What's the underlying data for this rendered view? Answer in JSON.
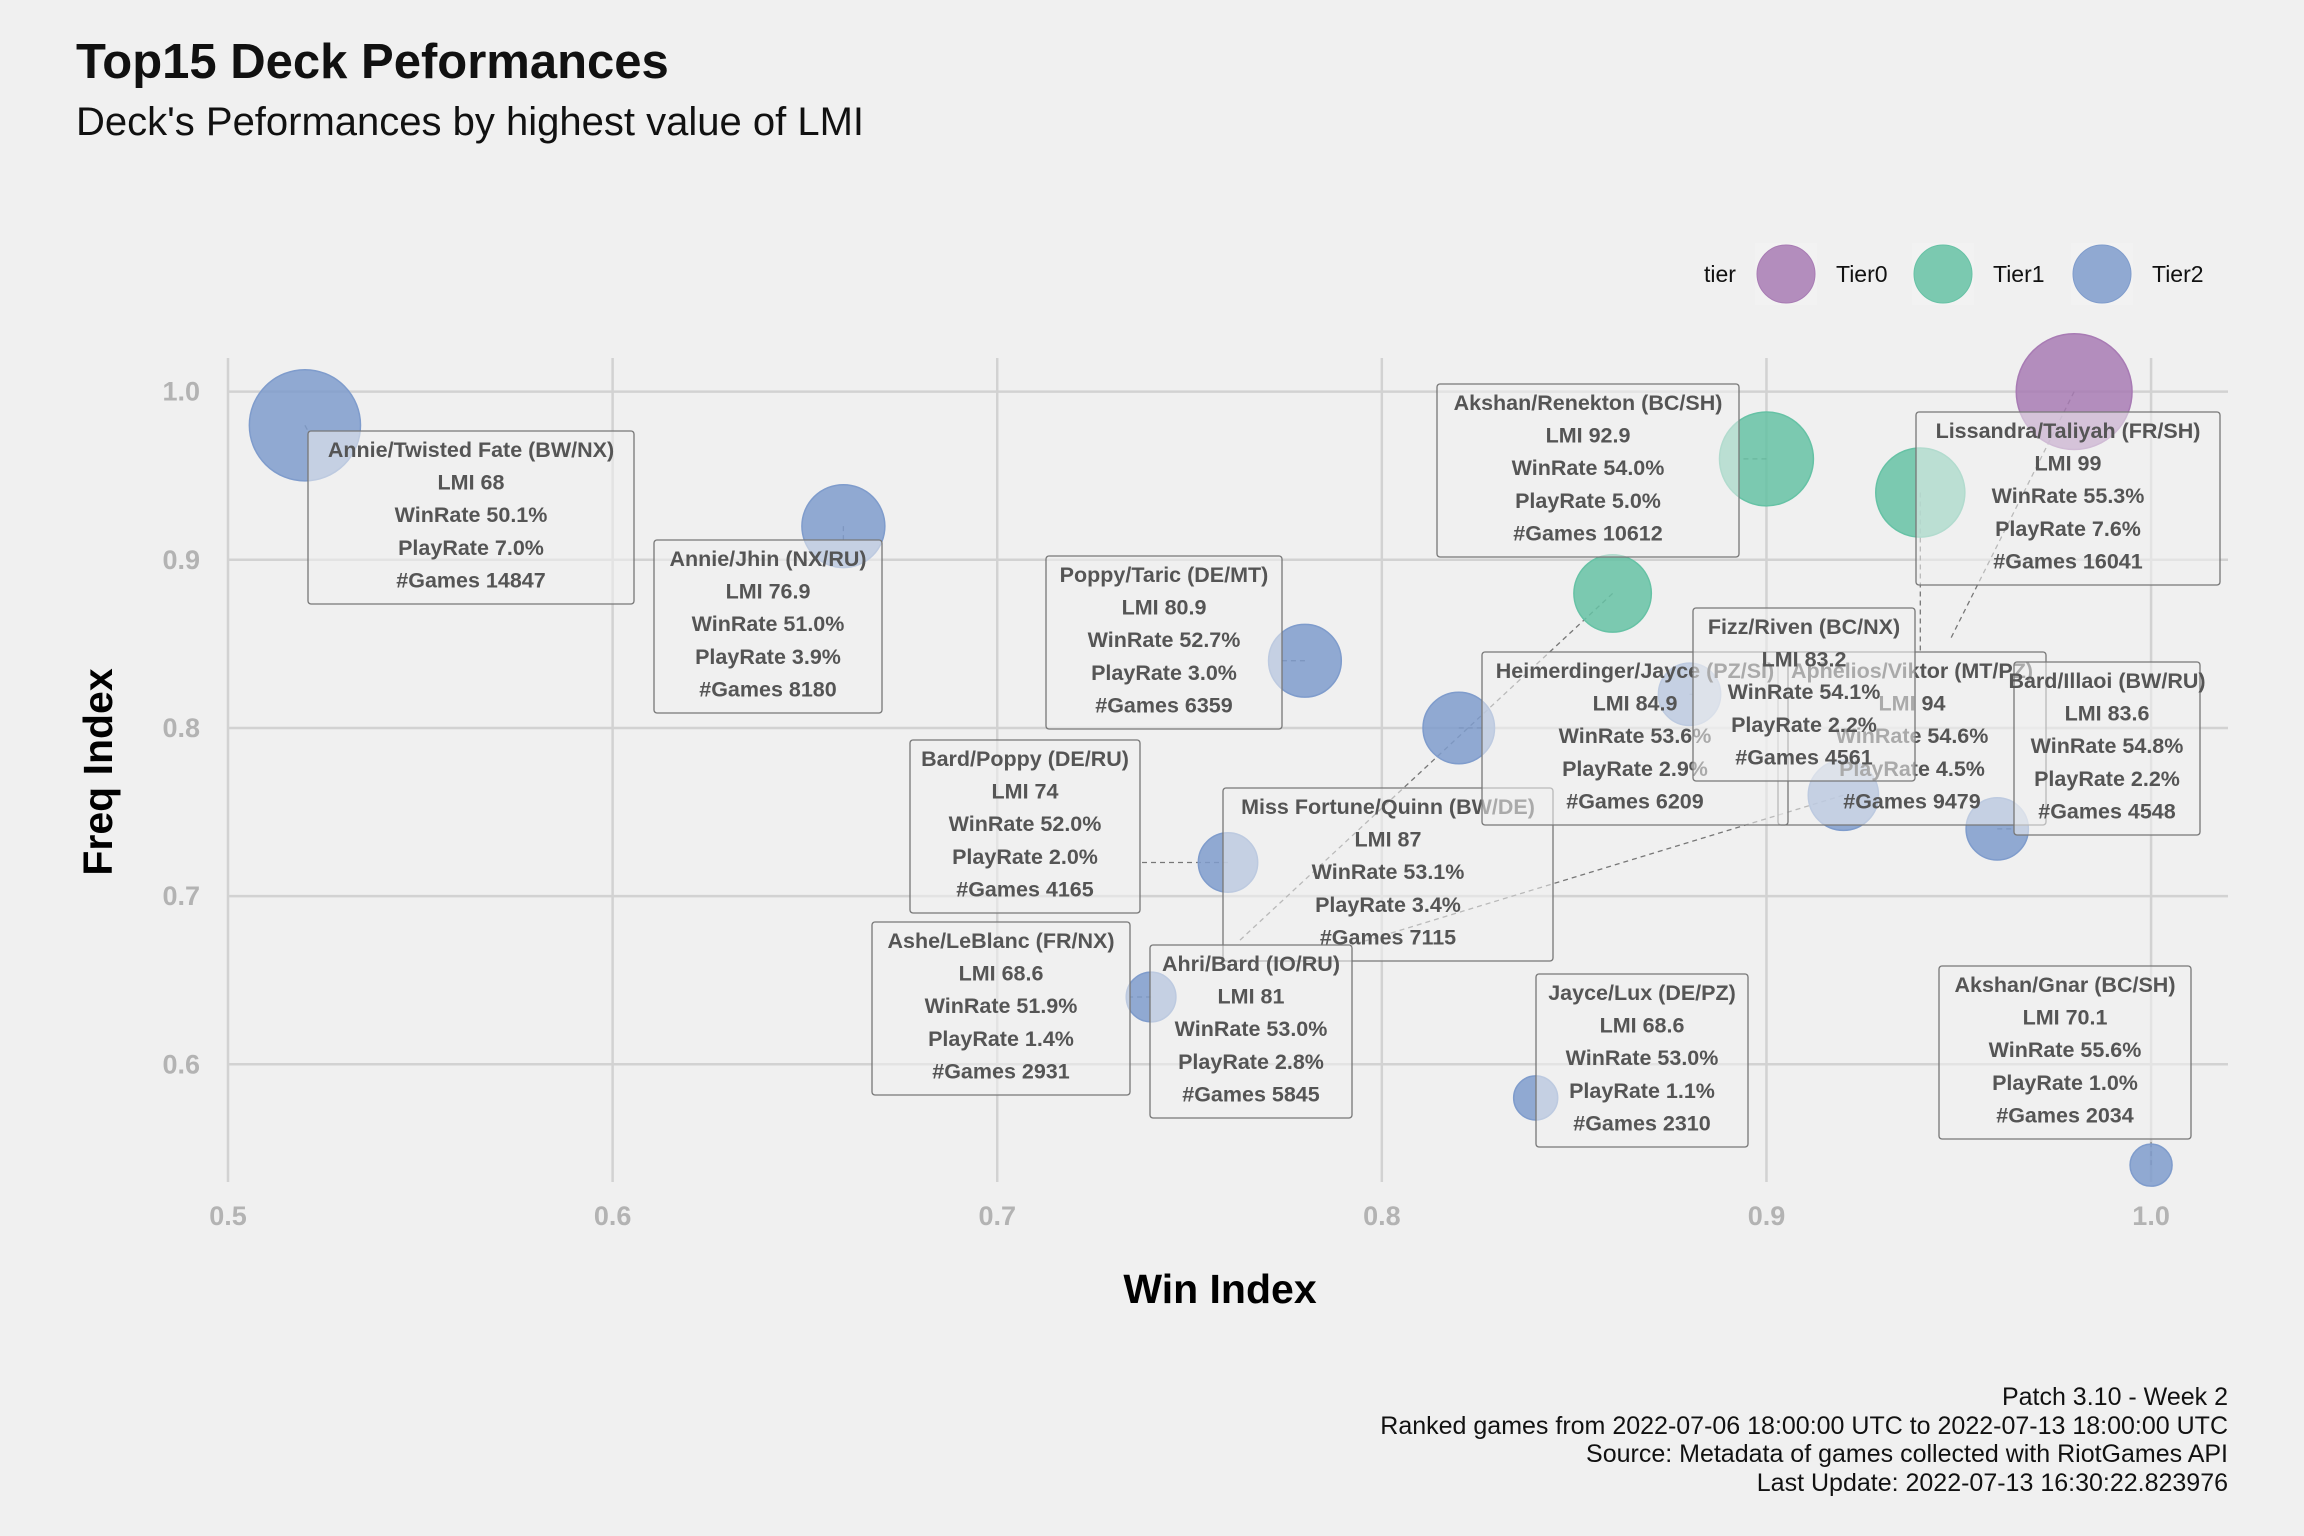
{
  "title": "Top15 Deck Peformances",
  "subtitle": "Deck's Peformances by highest value of LMI",
  "caption": [
    "Patch 3.10 - Week 2",
    "Ranked games from 2022-07-06 18:00:00 UTC to 2022-07-13 18:00:00 UTC",
    "Source: Metadata of games collected with RiotGames API",
    "Last Update: 2022-07-13 16:30:22.823976"
  ],
  "colors": {
    "Tier0": "#a87bb4",
    "Tier1": "#66c2a5",
    "Tier2": "#7f9ccc"
  },
  "chart_data": {
    "type": "scatter",
    "xlabel": "Win Index",
    "ylabel": "Freq Index",
    "xlim": [
      0.5,
      1.02
    ],
    "ylim": [
      0.53,
      1.02
    ],
    "xticks": [
      "0.5",
      "0.6",
      "0.7",
      "0.8",
      "0.9",
      "1.0"
    ],
    "yticks": [
      "0.6",
      "0.7",
      "0.8",
      "0.9",
      "1.0"
    ],
    "grid": true,
    "legend": {
      "title": "tier",
      "position": "top-right",
      "entries": [
        "Tier0",
        "Tier1",
        "Tier2"
      ]
    },
    "size_variable": "PlayRate",
    "points": [
      {
        "deck": "Lissandra/Taliyah (FR/SH)",
        "tier": "Tier0",
        "x": 0.98,
        "y": 1.0,
        "lmi": "99",
        "winrate": "55.3%",
        "playrate": "7.6%",
        "games": "16041"
      },
      {
        "deck": "Akshan/Renekton (BC/SH)",
        "tier": "Tier1",
        "x": 0.9,
        "y": 0.96,
        "lmi": "92.9",
        "winrate": "54.0%",
        "playrate": "5.0%",
        "games": "10612"
      },
      {
        "deck": "Aphelios/Viktor (MT/PZ)",
        "tier": "Tier1",
        "x": 0.94,
        "y": 0.94,
        "lmi": "94",
        "winrate": "54.6%",
        "playrate": "4.5%",
        "games": "9479"
      },
      {
        "deck": "Miss Fortune/Quinn (BW/DE)",
        "tier": "Tier1",
        "x": 0.86,
        "y": 0.88,
        "lmi": "87",
        "winrate": "53.1%",
        "playrate": "3.4%",
        "games": "7115"
      },
      {
        "deck": "Annie/Twisted Fate (BW/NX)",
        "tier": "Tier2",
        "x": 0.52,
        "y": 0.98,
        "lmi": "68",
        "winrate": "50.1%",
        "playrate": "7.0%",
        "games": "14847"
      },
      {
        "deck": "Annie/Jhin (NX/RU)",
        "tier": "Tier2",
        "x": 0.66,
        "y": 0.92,
        "lmi": "76.9",
        "winrate": "51.0%",
        "playrate": "3.9%",
        "games": "8180"
      },
      {
        "deck": "Poppy/Taric (DE/MT)",
        "tier": "Tier2",
        "x": 0.78,
        "y": 0.84,
        "lmi": "80.9",
        "winrate": "52.7%",
        "playrate": "3.0%",
        "games": "6359"
      },
      {
        "deck": "Heimerdinger/Jayce (PZ/SI)",
        "tier": "Tier2",
        "x": 0.82,
        "y": 0.8,
        "lmi": "84.9",
        "winrate": "53.6%",
        "playrate": "2.9%",
        "games": "6209"
      },
      {
        "deck": "Fizz/Riven (BC/NX)",
        "tier": "Tier2",
        "x": 0.88,
        "y": 0.82,
        "lmi": "83.2",
        "winrate": "54.1%",
        "playrate": "2.2%",
        "games": "4561"
      },
      {
        "deck": "Bard/Illaoi (BW/RU)",
        "tier": "Tier2",
        "x": 0.96,
        "y": 0.74,
        "lmi": "83.6",
        "winrate": "54.8%",
        "playrate": "2.2%",
        "games": "4548"
      },
      {
        "deck": "Bard/Poppy (DE/RU)",
        "tier": "Tier2",
        "x": 0.76,
        "y": 0.72,
        "lmi": "74",
        "winrate": "52.0%",
        "playrate": "2.0%",
        "games": "4165"
      },
      {
        "deck": "Ashe/LeBlanc (FR/NX)",
        "tier": "Tier2",
        "x": 0.74,
        "y": 0.64,
        "lmi": "68.6",
        "winrate": "51.9%",
        "playrate": "1.4%",
        "games": "2931"
      },
      {
        "deck": "Ahri/Bard (IO/RU)",
        "tier": "Tier2",
        "x": 0.92,
        "y": 0.76,
        "lmi": "81",
        "winrate": "53.0%",
        "playrate": "2.8%",
        "games": "5845"
      },
      {
        "deck": "Jayce/Lux (DE/PZ)",
        "tier": "Tier2",
        "x": 0.84,
        "y": 0.58,
        "lmi": "68.6",
        "winrate": "53.0%",
        "playrate": "1.1%",
        "games": "2310"
      },
      {
        "deck": "Akshan/Gnar (BC/SH)",
        "tier": "Tier2",
        "x": 1.0,
        "y": 0.54,
        "lmi": "70.1",
        "winrate": "55.6%",
        "playrate": "1.0%",
        "games": "2034"
      }
    ]
  }
}
